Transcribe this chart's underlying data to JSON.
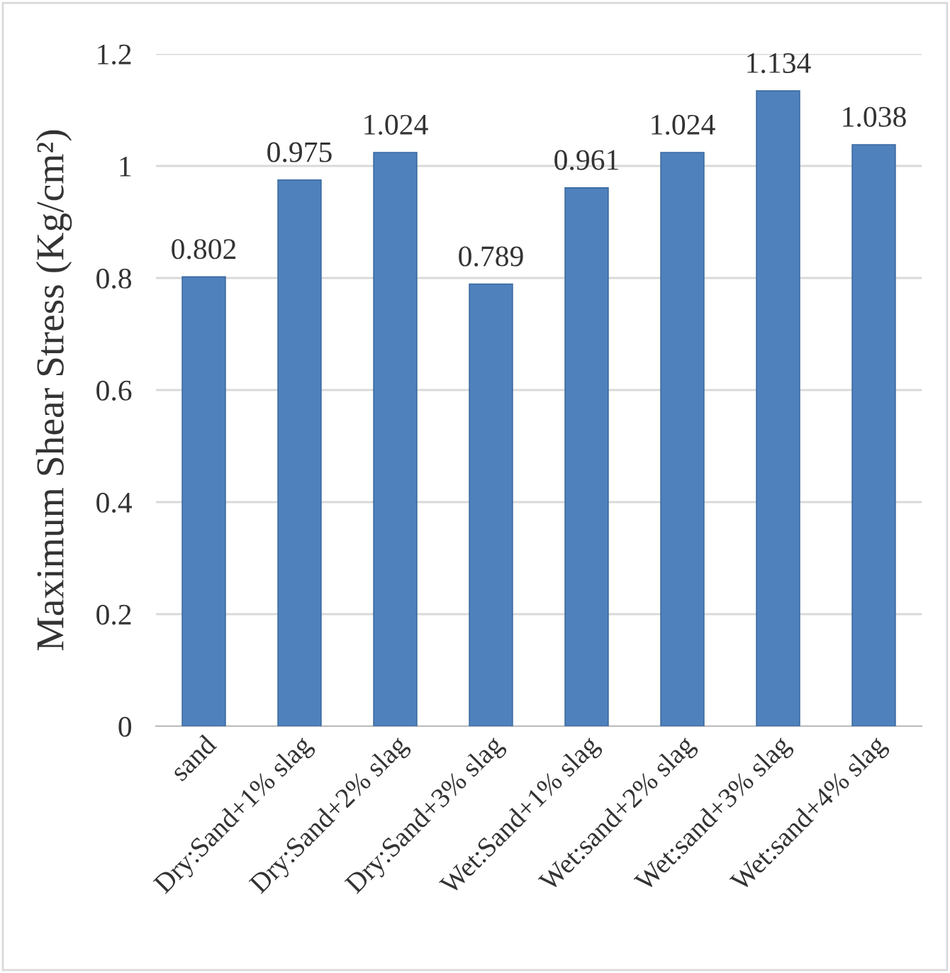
{
  "chart_data": {
    "type": "bar",
    "ylabel": "Maximum Shear Stress (Kg/cm²)",
    "categories": [
      "sand",
      "Dry:Sand+1% slag",
      "Dry:Sand+2% slag",
      "Dry:Sand+3% slag",
      "Wet:Sand+1% slag",
      "Wet:sand+2% slag",
      "Wet:sand+3% slag",
      "Wet:sand+4% slag"
    ],
    "values": [
      0.802,
      0.975,
      1.024,
      0.789,
      0.961,
      1.024,
      1.134,
      1.038
    ],
    "color": "#4f81bd",
    "ylim": [
      0,
      1.2
    ],
    "yticks": [
      0,
      0.2,
      0.4,
      0.6,
      0.8,
      1,
      1.2
    ],
    "grid": "y",
    "data_labels": true
  }
}
